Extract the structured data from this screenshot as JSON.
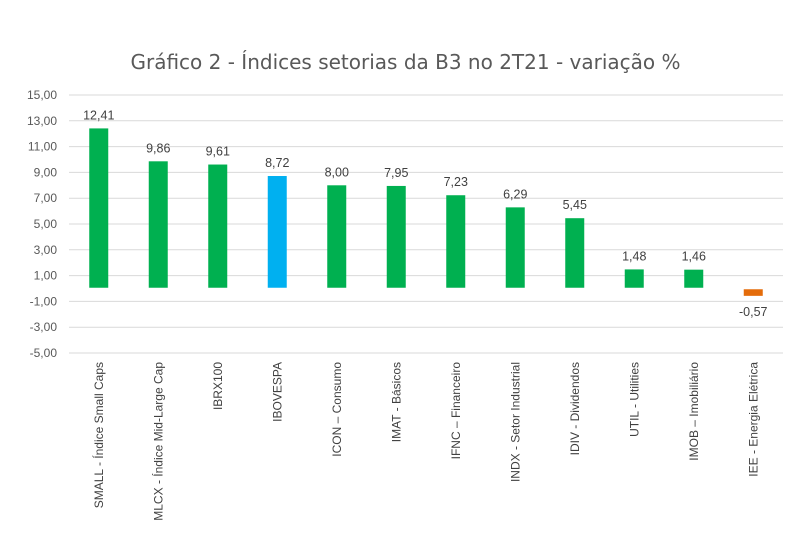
{
  "chart_data": {
    "type": "bar",
    "title": "Gráfico 2 - Índices setorias da B3 no 2T21 - variação %",
    "xlabel": "",
    "ylabel": "",
    "ylim": [
      -5,
      15
    ],
    "y_ticks": [
      "15,00",
      "13,00",
      "11,00",
      "9,00",
      "7,00",
      "5,00",
      "3,00",
      "1,00",
      "-1,00",
      "-3,00",
      "-5,00"
    ],
    "y_tick_values": [
      15,
      13,
      11,
      9,
      7,
      5,
      3,
      1,
      -1,
      -3,
      -5
    ],
    "grid": true,
    "legend": "none",
    "categories": [
      "SMALL - Índice Small Caps",
      "MLCX - Índice Mid-Large Cap",
      "IBRX100",
      "IBOVESPA",
      "ICON – Consumo",
      "IMAT - Básicos",
      "IFNC – Financeiro",
      "INDX - Setor Industrial",
      "IDIV - Dividendos",
      "UTIL - Utilities",
      "IMOB – Imobiliário",
      "IEE - Energia Elétrica"
    ],
    "values": [
      12.41,
      9.86,
      9.61,
      8.72,
      8.0,
      7.95,
      7.23,
      6.29,
      5.45,
      1.48,
      1.46,
      -0.57
    ],
    "value_labels": [
      "12,41",
      "9,86",
      "9,61",
      "8,72",
      "8,00",
      "7,95",
      "7,23",
      "6,29",
      "5,45",
      "1,48",
      "1,46",
      "-0,57"
    ],
    "colors": [
      "#00b050",
      "#00b050",
      "#00b050",
      "#00b0f0",
      "#00b050",
      "#00b050",
      "#00b050",
      "#00b050",
      "#00b050",
      "#00b050",
      "#00b050",
      "#e46c0a"
    ],
    "grid_color": "#d9d9d9"
  }
}
